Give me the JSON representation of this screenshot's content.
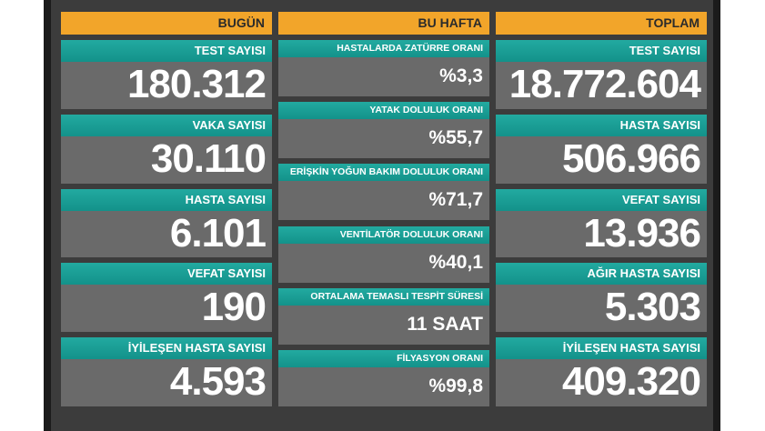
{
  "columns": [
    {
      "title": "BUGÜN",
      "cards": [
        {
          "label": "TEST SAYISI",
          "value": "180.312"
        },
        {
          "label": "VAKA SAYISI",
          "value": "30.110"
        },
        {
          "label": "HASTA SAYISI",
          "value": "6.101"
        },
        {
          "label": "VEFAT SAYISI",
          "value": "190"
        },
        {
          "label": "İYİLEŞEN HASTA SAYISI",
          "value": "4.593"
        }
      ]
    },
    {
      "title": "BU HAFTA",
      "cards": [
        {
          "label": "HASTALARDA ZATÜRRE ORANI",
          "value": "%3,3"
        },
        {
          "label": "YATAK DOLULUK ORANI",
          "value": "%55,7"
        },
        {
          "label": "ERİŞKİN YOĞUN BAKIM DOLULUK ORANI",
          "value": "%71,7"
        },
        {
          "label": "VENTİLATÖR DOLULUK ORANI",
          "value": "%40,1"
        },
        {
          "label": "ORTALAMA TEMASLI TESPİT SÜRESİ",
          "value": "11 SAAT"
        },
        {
          "label": "FİLYASYON ORANI",
          "value": "%99,8"
        }
      ]
    },
    {
      "title": "TOPLAM",
      "cards": [
        {
          "label": "TEST SAYISI",
          "value": "18.772.604"
        },
        {
          "label": "HASTA SAYISI",
          "value": "506.966"
        },
        {
          "label": "VEFAT SAYISI",
          "value": "13.936"
        },
        {
          "label": "AĞIR HASTA SAYISI",
          "value": "5.303"
        },
        {
          "label": "İYİLEŞEN HASTA SAYISI",
          "value": "409.320"
        }
      ]
    }
  ]
}
